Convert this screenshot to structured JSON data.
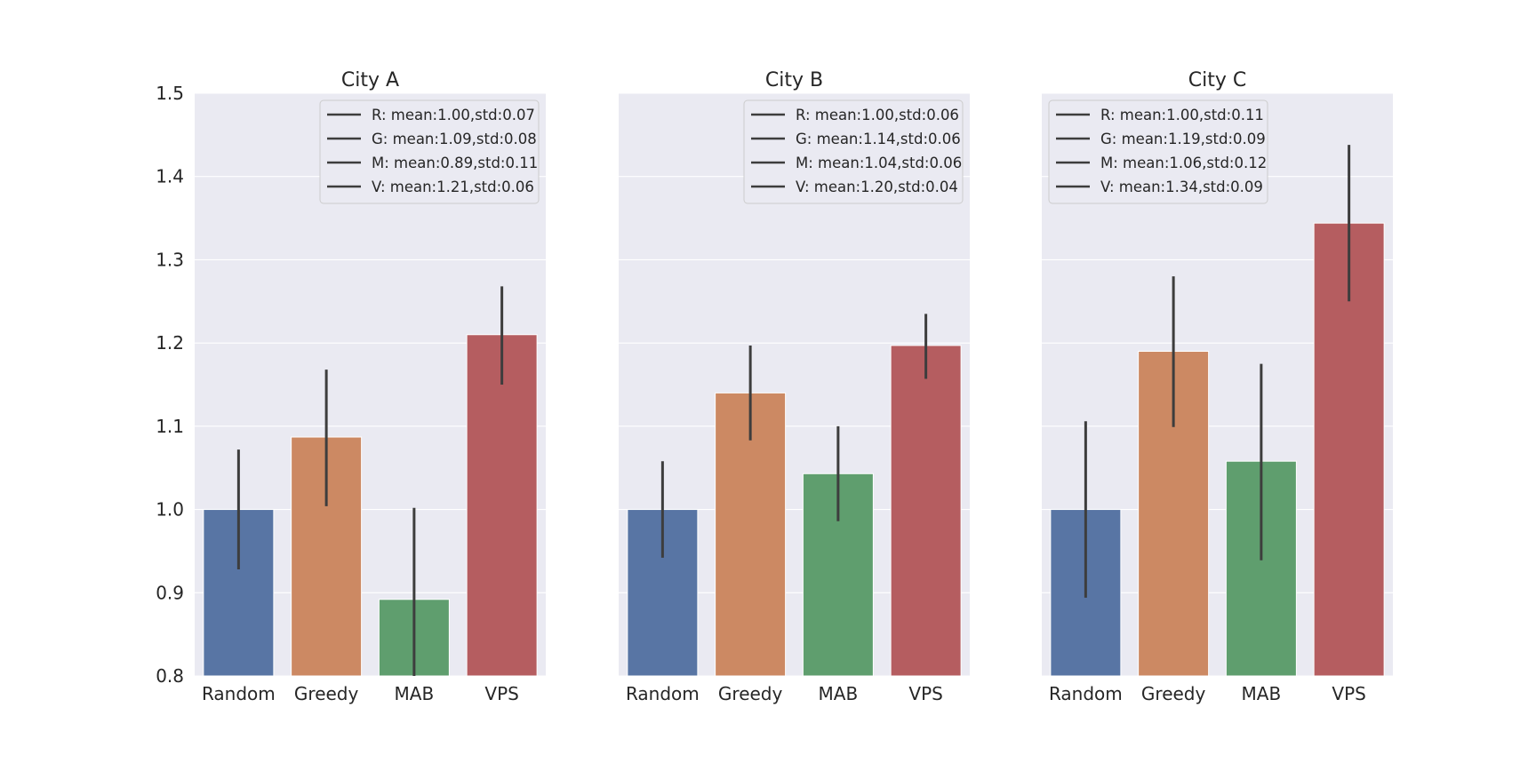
{
  "chart_data": [
    {
      "type": "bar",
      "title": "City A",
      "categories": [
        "Random",
        "Greedy",
        "MAB",
        "VPS"
      ],
      "values": [
        1.0,
        1.087,
        0.892,
        1.21
      ],
      "error_low": [
        0.928,
        1.004,
        0.8,
        1.15
      ],
      "error_high": [
        1.072,
        1.168,
        1.002,
        1.268
      ],
      "ylim": [
        0.8,
        1.5
      ],
      "yticks": [
        "0.8",
        "0.9",
        "1.0",
        "1.1",
        "1.2",
        "1.3",
        "1.4",
        "1.5"
      ],
      "show_yticks": true,
      "legend_position": "top-right",
      "legend": [
        "R: mean:1.00,std:0.07",
        "G: mean:1.09,std:0.08",
        "M: mean:0.89,std:0.11",
        "V: mean:1.21,std:0.06"
      ]
    },
    {
      "type": "bar",
      "title": "City B",
      "categories": [
        "Random",
        "Greedy",
        "MAB",
        "VPS"
      ],
      "values": [
        1.0,
        1.14,
        1.043,
        1.197
      ],
      "error_low": [
        0.942,
        1.083,
        0.986,
        1.157
      ],
      "error_high": [
        1.058,
        1.197,
        1.1,
        1.235
      ],
      "ylim": [
        0.8,
        1.5
      ],
      "yticks": [
        "0.8",
        "0.9",
        "1.0",
        "1.1",
        "1.2",
        "1.3",
        "1.4",
        "1.5"
      ],
      "show_yticks": false,
      "legend_position": "top-right",
      "legend": [
        "R: mean:1.00,std:0.06",
        "G: mean:1.14,std:0.06",
        "M: mean:1.04,std:0.06",
        "V: mean:1.20,std:0.04"
      ]
    },
    {
      "type": "bar",
      "title": "City C",
      "categories": [
        "Random",
        "Greedy",
        "MAB",
        "VPS"
      ],
      "values": [
        1.0,
        1.19,
        1.058,
        1.344
      ],
      "error_low": [
        0.894,
        1.099,
        0.939,
        1.25
      ],
      "error_high": [
        1.106,
        1.28,
        1.175,
        1.438
      ],
      "ylim": [
        0.8,
        1.5
      ],
      "yticks": [
        "0.8",
        "0.9",
        "1.0",
        "1.1",
        "1.2",
        "1.3",
        "1.4",
        "1.5"
      ],
      "show_yticks": false,
      "legend_position": "top-left",
      "legend": [
        "R: mean:1.00,std:0.11",
        "G: mean:1.19,std:0.09",
        "M: mean:1.06,std:0.12",
        "V: mean:1.34,std:0.09"
      ]
    }
  ],
  "colors": {
    "bars": [
      "#5875a4",
      "#cc8963",
      "#5f9e6e",
      "#b55d60"
    ],
    "background": "#eaeaf2",
    "error": "#3d3d3d"
  }
}
